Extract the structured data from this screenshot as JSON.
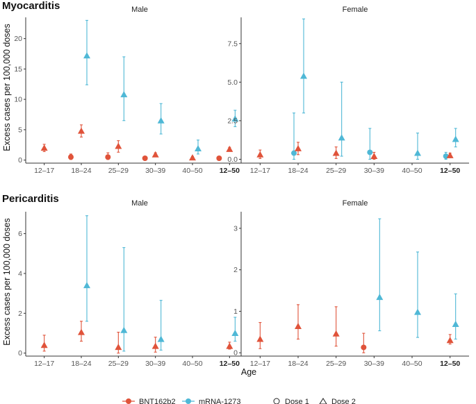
{
  "colors": {
    "BNT162b2": "#E0533A",
    "mRNA-1273": "#4FB8D6",
    "axis": "#333333"
  },
  "chart_data": [
    {
      "type": "scatter",
      "section": "Myocarditis",
      "facet": "Male",
      "categories": [
        "12–17",
        "18–24",
        "25–29",
        "30–39",
        "40–50",
        "12–50"
      ],
      "bold_category": "12–50",
      "ylim": [
        -0.5,
        23.5
      ],
      "yticks": [
        0,
        5,
        10,
        15,
        20
      ],
      "ytick_labels": [
        "0",
        "5",
        "10",
        "15",
        "20"
      ],
      "points": [
        {
          "series": "BNT162b2",
          "dose": 2,
          "category": "12–17",
          "y": 2.0,
          "lo": 1.4,
          "hi": 2.6
        },
        {
          "series": "BNT162b2",
          "dose": 1,
          "category": "18–24",
          "y": 0.5,
          "lo": 0.1,
          "hi": 1.0
        },
        {
          "series": "BNT162b2",
          "dose": 2,
          "category": "18–24",
          "y": 4.8,
          "lo": 3.8,
          "hi": 5.8
        },
        {
          "series": "mRNA-1273",
          "dose": 2,
          "category": "18–24",
          "y": 17.2,
          "lo": 12.4,
          "hi": 23.0
        },
        {
          "series": "BNT162b2",
          "dose": 1,
          "category": "25–29",
          "y": 0.5,
          "lo": 0.1,
          "hi": 1.2
        },
        {
          "series": "BNT162b2",
          "dose": 2,
          "category": "25–29",
          "y": 2.3,
          "lo": 1.3,
          "hi": 3.2
        },
        {
          "series": "mRNA-1273",
          "dose": 2,
          "category": "25–29",
          "y": 10.8,
          "lo": 6.5,
          "hi": 17.0
        },
        {
          "series": "BNT162b2",
          "dose": 1,
          "category": "30–39",
          "y": 0.3,
          "lo": 0.1,
          "hi": 0.5
        },
        {
          "series": "BNT162b2",
          "dose": 2,
          "category": "30–39",
          "y": 0.9,
          "lo": 0.6,
          "hi": 1.2
        },
        {
          "series": "mRNA-1273",
          "dose": 2,
          "category": "30–39",
          "y": 6.5,
          "lo": 4.3,
          "hi": 9.3
        },
        {
          "series": "BNT162b2",
          "dose": 2,
          "category": "40–50",
          "y": 0.4,
          "lo": 0.2,
          "hi": 0.6
        },
        {
          "series": "mRNA-1273",
          "dose": 2,
          "category": "40–50",
          "y": 1.9,
          "lo": 1.0,
          "hi": 3.3
        },
        {
          "series": "BNT162b2",
          "dose": 1,
          "category": "12–50",
          "y": 0.3,
          "lo": 0.2,
          "hi": 0.4
        },
        {
          "series": "BNT162b2",
          "dose": 2,
          "category": "12–50",
          "y": 1.8,
          "lo": 1.5,
          "hi": 2.1
        },
        {
          "series": "mRNA-1273",
          "dose": 2,
          "category": "12–50",
          "y": 6.8,
          "lo": 5.5,
          "hi": 8.2
        }
      ]
    },
    {
      "type": "scatter",
      "section": "Myocarditis",
      "facet": "Female",
      "categories": [
        "12–17",
        "18–24",
        "25–29",
        "30–39",
        "40–50",
        "12–50"
      ],
      "bold_category": "12–50",
      "ylim": [
        -0.25,
        9.2
      ],
      "yticks": [
        0.0,
        2.5,
        5.0,
        7.5
      ],
      "ytick_labels": [
        "0.0",
        "2.5",
        "5.0",
        "7.5"
      ],
      "points": [
        {
          "series": "BNT162b2",
          "dose": 2,
          "category": "12–17",
          "y": 0.3,
          "lo": 0.05,
          "hi": 0.6
        },
        {
          "series": "mRNA-1273",
          "dose": 1,
          "category": "18–24",
          "y": 0.4,
          "lo": 0.0,
          "hi": 3.0
        },
        {
          "series": "BNT162b2",
          "dose": 2,
          "category": "18–24",
          "y": 0.7,
          "lo": 0.3,
          "hi": 1.1
        },
        {
          "series": "mRNA-1273",
          "dose": 2,
          "category": "18–24",
          "y": 5.4,
          "lo": 3.0,
          "hi": 9.1
        },
        {
          "series": "BNT162b2",
          "dose": 2,
          "category": "25–29",
          "y": 0.4,
          "lo": 0.05,
          "hi": 0.8
        },
        {
          "series": "mRNA-1273",
          "dose": 2,
          "category": "25–29",
          "y": 1.4,
          "lo": 0.2,
          "hi": 5.0
        },
        {
          "series": "mRNA-1273",
          "dose": 1,
          "category": "30–39",
          "y": 0.45,
          "lo": 0.0,
          "hi": 2.0
        },
        {
          "series": "BNT162b2",
          "dose": 2,
          "category": "30–39",
          "y": 0.2,
          "lo": 0.0,
          "hi": 0.45
        },
        {
          "series": "mRNA-1273",
          "dose": 2,
          "category": "40–50",
          "y": 0.4,
          "lo": 0.0,
          "hi": 1.7
        },
        {
          "series": "mRNA-1273",
          "dose": 1,
          "category": "12–50",
          "y": 0.2,
          "lo": 0.0,
          "hi": 0.45
        },
        {
          "series": "BNT162b2",
          "dose": 2,
          "category": "12–50",
          "y": 0.25,
          "lo": 0.1,
          "hi": 0.4
        },
        {
          "series": "mRNA-1273",
          "dose": 2,
          "category": "12–50",
          "y": 1.3,
          "lo": 0.8,
          "hi": 2.0
        }
      ]
    },
    {
      "type": "scatter",
      "section": "Pericarditis",
      "facet": "Male",
      "categories": [
        "12–17",
        "18–24",
        "25–29",
        "30–39",
        "40–50",
        "12–50"
      ],
      "bold_category": "12–50",
      "ylim": [
        -0.15,
        7.1
      ],
      "yticks": [
        0,
        2,
        4,
        6
      ],
      "ytick_labels": [
        "0",
        "2",
        "4",
        "6"
      ],
      "points": [
        {
          "series": "BNT162b2",
          "dose": 2,
          "category": "12–17",
          "y": 0.4,
          "lo": 0.1,
          "hi": 0.9
        },
        {
          "series": "BNT162b2",
          "dose": 2,
          "category": "18–24",
          "y": 1.05,
          "lo": 0.6,
          "hi": 1.6
        },
        {
          "series": "mRNA-1273",
          "dose": 2,
          "category": "18–24",
          "y": 3.4,
          "lo": 1.6,
          "hi": 6.9
        },
        {
          "series": "BNT162b2",
          "dose": 2,
          "category": "25–29",
          "y": 0.3,
          "lo": 0.0,
          "hi": 1.05
        },
        {
          "series": "mRNA-1273",
          "dose": 2,
          "category": "25–29",
          "y": 1.15,
          "lo": 0.1,
          "hi": 5.3
        },
        {
          "series": "BNT162b2",
          "dose": 2,
          "category": "30–39",
          "y": 0.35,
          "lo": 0.05,
          "hi": 0.8
        },
        {
          "series": "mRNA-1273",
          "dose": 2,
          "category": "30–39",
          "y": 0.7,
          "lo": 0.15,
          "hi": 2.65
        },
        {
          "series": "BNT162b2",
          "dose": 2,
          "category": "12–50",
          "y": 0.35,
          "lo": 0.2,
          "hi": 0.55
        },
        {
          "series": "mRNA-1273",
          "dose": 2,
          "category": "12–50",
          "y": 1.0,
          "lo": 0.6,
          "hi": 1.8
        }
      ]
    },
    {
      "type": "scatter",
      "section": "Pericarditis",
      "facet": "Female",
      "categories": [
        "12–17",
        "18–24",
        "25–29",
        "30–39",
        "40–50",
        "12–50"
      ],
      "bold_category": "12–50",
      "ylim": [
        -0.08,
        3.4
      ],
      "yticks": [
        0,
        1,
        2,
        3
      ],
      "ytick_labels": [
        "0",
        "1",
        "2",
        "3"
      ],
      "points": [
        {
          "series": "BNT162b2",
          "dose": 2,
          "category": "12–17",
          "y": 0.33,
          "lo": 0.1,
          "hi": 0.73
        },
        {
          "series": "BNT162b2",
          "dose": 2,
          "category": "18–24",
          "y": 0.64,
          "lo": 0.33,
          "hi": 1.16
        },
        {
          "series": "BNT162b2",
          "dose": 2,
          "category": "25–29",
          "y": 0.46,
          "lo": 0.16,
          "hi": 1.11
        },
        {
          "series": "BNT162b2",
          "dose": 1,
          "category": "30–39",
          "y": 0.13,
          "lo": 0.0,
          "hi": 0.47
        },
        {
          "series": "mRNA-1273",
          "dose": 2,
          "category": "30–39",
          "y": 1.34,
          "lo": 0.53,
          "hi": 3.23
        },
        {
          "series": "mRNA-1273",
          "dose": 2,
          "category": "40–50",
          "y": 0.98,
          "lo": 0.37,
          "hi": 2.43
        },
        {
          "series": "BNT162b2",
          "dose": 2,
          "category": "12–50",
          "y": 0.3,
          "lo": 0.21,
          "hi": 0.44
        },
        {
          "series": "mRNA-1273",
          "dose": 2,
          "category": "12–50",
          "y": 0.69,
          "lo": 0.33,
          "hi": 1.42
        }
      ]
    }
  ],
  "labels": {
    "myocarditis_title": "Myocarditis",
    "pericarditis_title": "Pericarditis",
    "myo_male_strip": "Male",
    "myo_female_strip": "Female",
    "peri_male_strip": "Male",
    "peri_female_strip": "Female",
    "ylabel_top": "Excess cases per 100,000 doses",
    "ylabel_bottom": "Excess cases per 100,000 doses",
    "xlabel": "Age"
  },
  "legend": {
    "series": [
      "BNT162b2",
      "mRNA-1273"
    ],
    "doses": [
      "Dose 1",
      "Dose 2"
    ]
  }
}
